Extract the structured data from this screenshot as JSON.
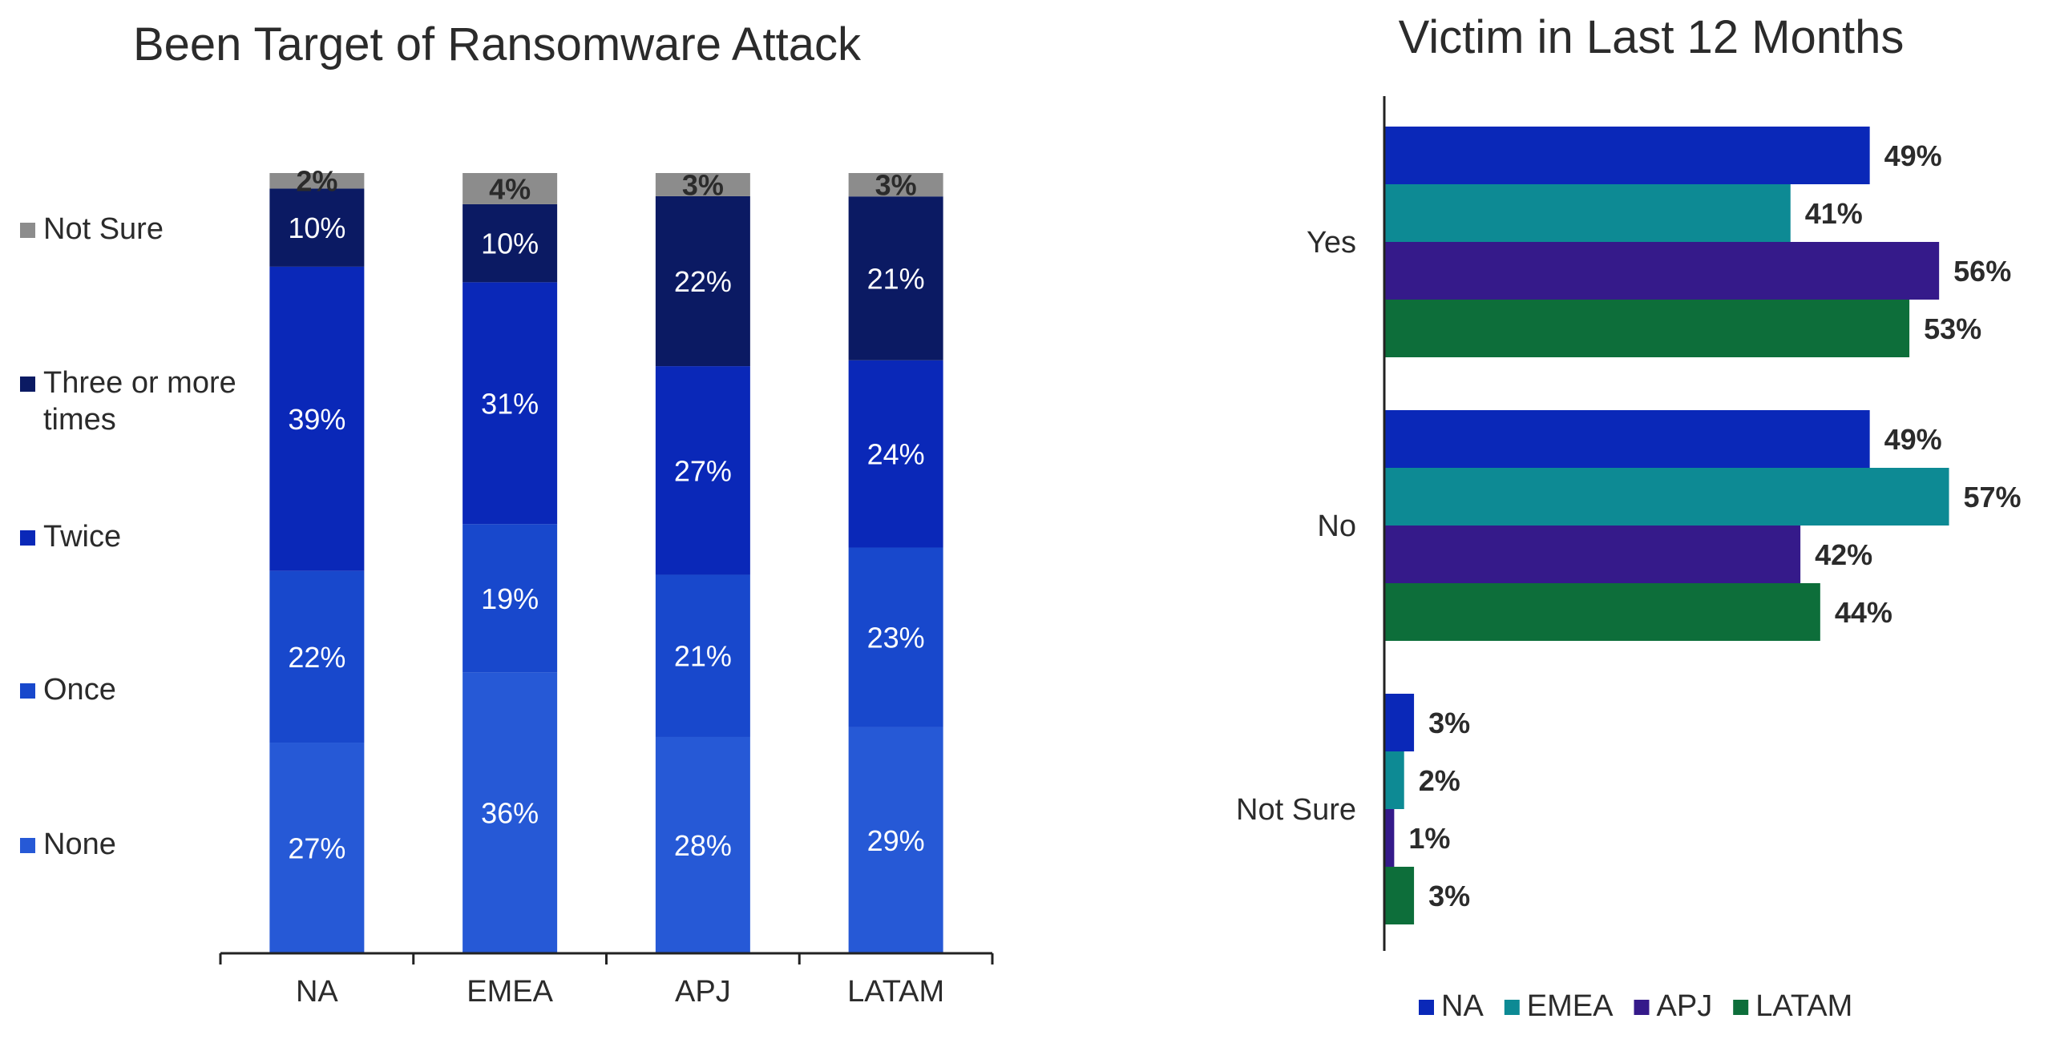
{
  "chart_data": [
    {
      "type": "bar",
      "orientation": "vertical",
      "stacked": true,
      "title": "Been Target of Ransomware Attack",
      "categories": [
        "NA",
        "EMEA",
        "APJ",
        "LATAM"
      ],
      "series": [
        {
          "name": "None",
          "color": "#2659d6",
          "values": [
            27,
            36,
            28,
            29
          ],
          "labels": [
            "27%",
            "36%",
            "28%",
            "29%"
          ]
        },
        {
          "name": "Once",
          "color": "#1848cc",
          "values": [
            22,
            19,
            21,
            23
          ],
          "labels": [
            "22%",
            "19%",
            "21%",
            "23%"
          ]
        },
        {
          "name": "Twice",
          "color": "#0a28b8",
          "values": [
            39,
            31,
            27,
            24
          ],
          "labels": [
            "39%",
            "31%",
            "27%",
            "24%"
          ]
        },
        {
          "name": "Three or more times",
          "color": "#0b1a63",
          "values": [
            10,
            10,
            22,
            21
          ],
          "labels": [
            "10%",
            "10%",
            "22%",
            "21%"
          ]
        },
        {
          "name": "Not Sure",
          "color": "#8c8c8c",
          "values": [
            2,
            4,
            3,
            3
          ],
          "labels": [
            "2%",
            "4%",
            "3%",
            "3%"
          ]
        }
      ],
      "legend_order": [
        "Not Sure",
        "Three or more times",
        "Twice",
        "Once",
        "None"
      ],
      "legend_position": "left",
      "ylim": [
        0,
        100
      ],
      "grid": false
    },
    {
      "type": "bar",
      "orientation": "horizontal",
      "title": "Victim in Last 12 Months",
      "categories": [
        "Yes",
        "No",
        "Not Sure"
      ],
      "series": [
        {
          "name": "NA",
          "color": "#0a28b8",
          "values": [
            49,
            49,
            3
          ],
          "labels": [
            "49%",
            "49%",
            "3%"
          ]
        },
        {
          "name": "EMEA",
          "color": "#0d8a94",
          "values": [
            41,
            57,
            2
          ],
          "labels": [
            "41%",
            "57%",
            "2%"
          ]
        },
        {
          "name": "APJ",
          "color": "#351a8a",
          "values": [
            56,
            42,
            1
          ],
          "labels": [
            "56%",
            "42%",
            "1%"
          ]
        },
        {
          "name": "LATAM",
          "color": "#0d6e3a",
          "values": [
            53,
            44,
            3
          ],
          "labels": [
            "53%",
            "44%",
            "3%"
          ]
        }
      ],
      "legend_position": "bottom",
      "xlim": [
        0,
        60
      ],
      "grid": false
    }
  ]
}
